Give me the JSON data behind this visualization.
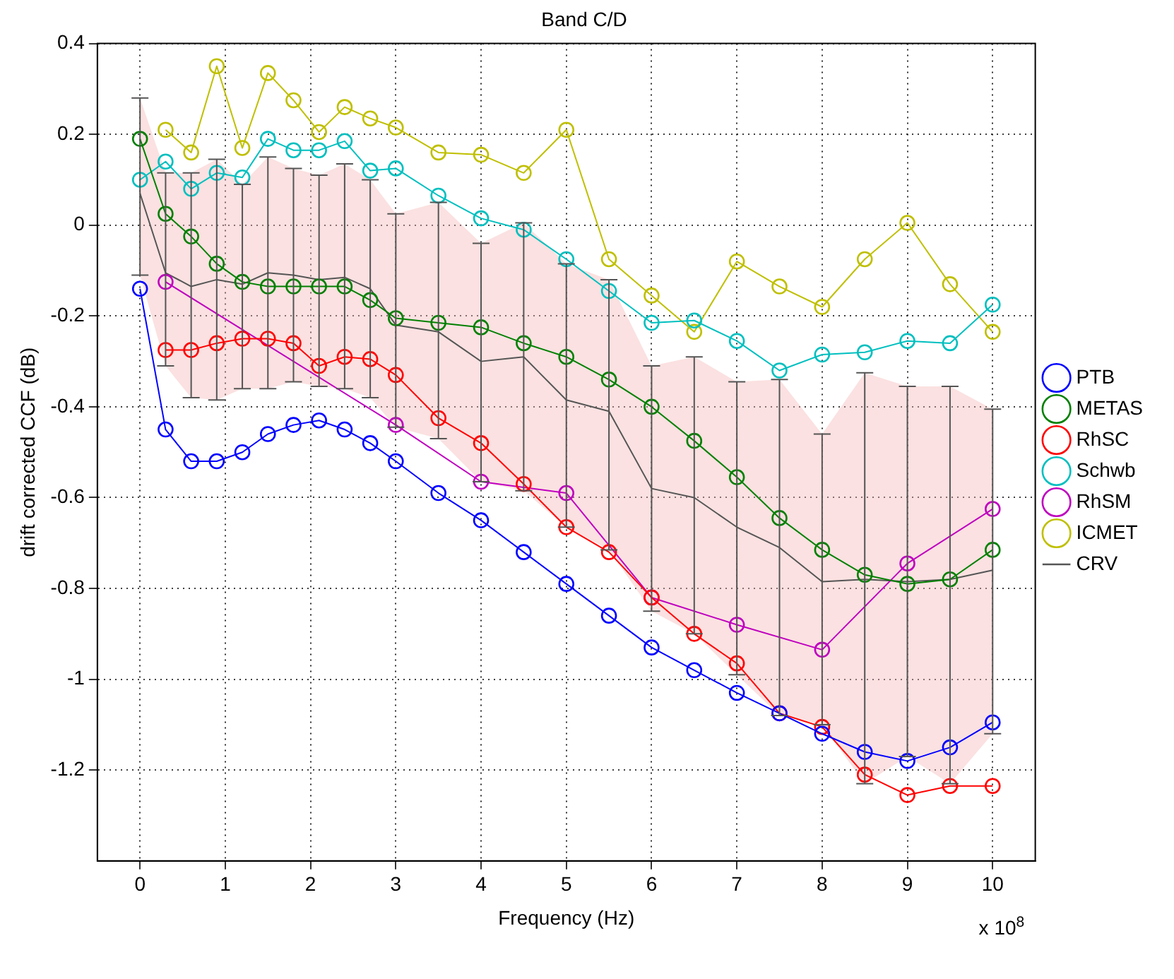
{
  "chart_data": {
    "type": "line",
    "title": "Band C/D",
    "xlabel": "Frequency (Hz)",
    "ylabel": "drift corrected CCF (dB)",
    "x": [
      0,
      0.3,
      0.6,
      0.9,
      1.2,
      1.5,
      1.8,
      2.1,
      2.4,
      2.7,
      3,
      3.5,
      4,
      4.5,
      5,
      5.5,
      6,
      6.5,
      7,
      7.5,
      8,
      8.5,
      9,
      9.5,
      10
    ],
    "series": [
      {
        "name": "PTB",
        "color": "#0000ff",
        "marker": "circle",
        "values": [
          -0.14,
          -0.45,
          -0.52,
          -0.52,
          -0.5,
          -0.46,
          -0.44,
          -0.43,
          -0.45,
          -0.48,
          -0.52,
          -0.59,
          -0.65,
          -0.72,
          -0.79,
          -0.86,
          -0.93,
          -0.98,
          -1.03,
          -1.075,
          -1.12,
          -1.16,
          -1.18,
          -1.15,
          -1.095
        ]
      },
      {
        "name": "METAS",
        "color": "#008000",
        "marker": "circle",
        "values": [
          0.19,
          0.025,
          -0.025,
          -0.085,
          -0.125,
          -0.135,
          -0.135,
          -0.135,
          -0.135,
          -0.165,
          -0.205,
          -0.215,
          -0.225,
          -0.26,
          -0.29,
          -0.34,
          -0.4,
          -0.475,
          -0.555,
          -0.645,
          -0.715,
          -0.77,
          -0.79,
          -0.78,
          -0.715
        ]
      },
      {
        "name": "RhSC",
        "color": "#ff0000",
        "marker": "circle",
        "values": [
          null,
          -0.275,
          -0.275,
          -0.26,
          -0.25,
          -0.25,
          -0.26,
          -0.31,
          -0.29,
          -0.295,
          -0.33,
          -0.425,
          -0.48,
          -0.57,
          -0.665,
          -0.72,
          -0.82,
          -0.9,
          -0.965,
          -1.075,
          -1.105,
          -1.21,
          -1.255,
          -1.235,
          -1.235
        ]
      },
      {
        "name": "Schwb",
        "color": "#00bfbf",
        "marker": "circle",
        "values": [
          0.1,
          0.14,
          0.08,
          0.115,
          0.105,
          0.19,
          0.165,
          0.165,
          0.185,
          0.12,
          0.125,
          0.065,
          0.015,
          -0.01,
          -0.075,
          -0.145,
          -0.215,
          -0.21,
          -0.255,
          -0.32,
          -0.285,
          -0.28,
          -0.255,
          -0.26,
          -0.175
        ]
      },
      {
        "name": "RhSM",
        "color": "#bf00bf",
        "marker": "circle",
        "x": [
          0.3,
          3,
          4,
          5,
          6,
          7,
          8,
          9,
          10
        ],
        "values": [
          -0.125,
          -0.44,
          -0.565,
          -0.59,
          -0.82,
          -0.88,
          -0.935,
          -0.745,
          -0.625
        ]
      },
      {
        "name": "ICMET",
        "color": "#bfbf00",
        "marker": "circle",
        "values": [
          null,
          0.21,
          0.16,
          0.35,
          0.17,
          0.335,
          0.275,
          0.205,
          0.26,
          0.235,
          0.215,
          0.16,
          0.155,
          0.115,
          0.21,
          -0.075,
          -0.155,
          -0.235,
          -0.08,
          -0.135,
          -0.18,
          -0.075,
          0.005,
          -0.13,
          -0.235
        ]
      },
      {
        "name": "CRV",
        "color": "#555555",
        "marker": "none",
        "values": [
          0.07,
          -0.105,
          -0.135,
          -0.12,
          -0.13,
          -0.105,
          -0.11,
          -0.12,
          -0.115,
          -0.14,
          -0.22,
          -0.235,
          -0.3,
          -0.29,
          -0.385,
          -0.41,
          -0.58,
          -0.6,
          -0.665,
          -0.71,
          -0.785,
          -0.78,
          -0.785,
          -0.78,
          -0.76
        ],
        "upper": [
          0.28,
          0.115,
          0.115,
          0.145,
          0.09,
          0.15,
          0.125,
          0.11,
          0.135,
          0.1,
          0.025,
          0.05,
          -0.04,
          0.005,
          -0.085,
          -0.12,
          -0.31,
          -0.29,
          -0.345,
          -0.34,
          -0.46,
          -0.325,
          -0.355,
          -0.355,
          -0.405
        ],
        "lower": [
          -0.11,
          -0.31,
          -0.38,
          -0.385,
          -0.36,
          -0.36,
          -0.345,
          -0.355,
          -0.36,
          -0.38,
          -0.445,
          -0.47,
          -0.565,
          -0.585,
          -0.665,
          -0.715,
          -0.85,
          -0.9,
          -0.99,
          -1.08,
          -1.1,
          -1.23,
          -1.17,
          -1.23,
          -1.12
        ],
        "errors": [
          [
            -0.11,
            0.28
          ],
          [
            -0.31,
            0.115
          ],
          [
            -0.38,
            0.115
          ],
          [
            -0.385,
            0.145
          ],
          [
            -0.36,
            0.09
          ],
          [
            -0.36,
            0.15
          ],
          [
            -0.345,
            0.125
          ],
          [
            -0.355,
            0.11
          ],
          [
            -0.36,
            0.135
          ],
          [
            -0.38,
            0.1
          ],
          [
            -0.445,
            0.025
          ],
          [
            -0.47,
            0.05
          ],
          [
            -0.565,
            -0.04
          ],
          [
            -0.585,
            0.005
          ],
          [
            -0.665,
            -0.085
          ],
          [
            -0.715,
            -0.12
          ],
          [
            -0.85,
            -0.31
          ],
          [
            -0.9,
            -0.29
          ],
          [
            -0.99,
            -0.345
          ],
          [
            -1.08,
            -0.34
          ],
          [
            -1.1,
            -0.46
          ],
          [
            -1.23,
            -0.325
          ],
          [
            -1.17,
            -0.355
          ],
          [
            -1.23,
            -0.355
          ],
          [
            -1.12,
            -0.405
          ]
        ]
      }
    ],
    "xlim": [
      -0.5,
      10.5
    ],
    "xticks": [
      0,
      1,
      2,
      3,
      4,
      5,
      6,
      7,
      8,
      9,
      10
    ],
    "ylim": [
      -1.4,
      0.4
    ],
    "yticks": [
      -1.2,
      -1,
      -0.8,
      -0.6,
      -0.4,
      -0.2,
      0,
      0.2,
      0.4
    ],
    "grid": true,
    "legend": "right",
    "line_style": "solid",
    "annotations": [
      "x 10$^{8}$"
    ]
  }
}
